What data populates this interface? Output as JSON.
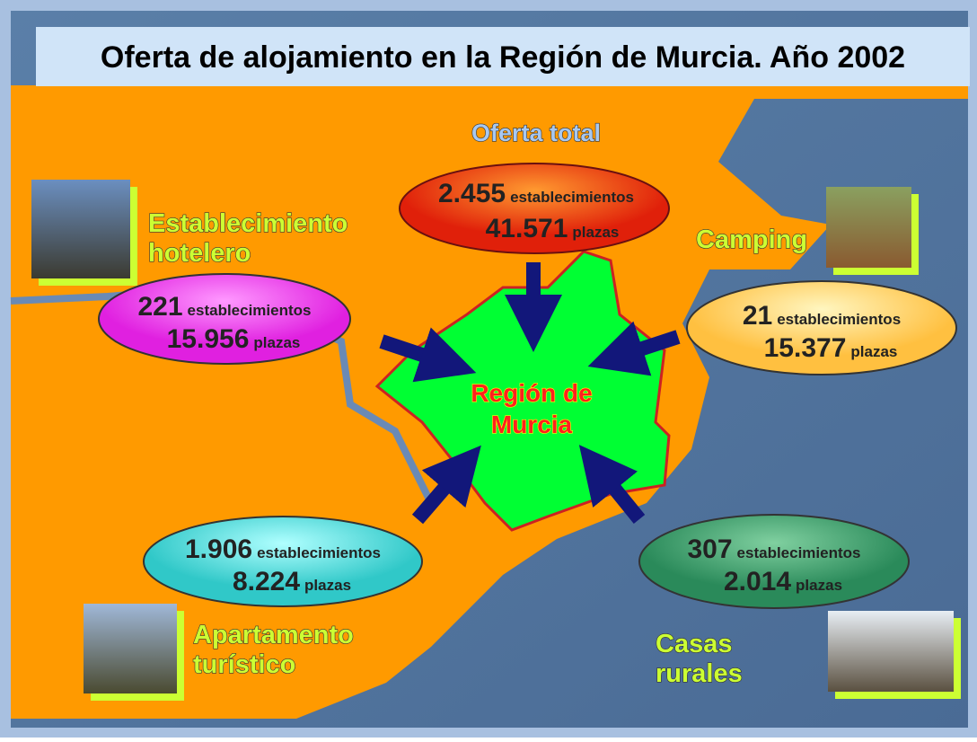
{
  "header": {
    "title": "Oferta de alojamiento en la Región de Murcia. Año 2002"
  },
  "units": {
    "establishments": "establecimientos",
    "places": "plazas"
  },
  "total": {
    "label": "Oferta total",
    "establishments": "2.455",
    "places": "41.571"
  },
  "region": {
    "lines": [
      "Región de",
      "Murcia"
    ]
  },
  "types": [
    {
      "label_lines": [
        "Establecimiento",
        "hotelero"
      ],
      "establishments": "221",
      "places": "15.956"
    },
    {
      "label_lines": [
        "Camping"
      ],
      "establishments": "21",
      "places": "15.377"
    },
    {
      "label_lines": [
        "Apartamento",
        "turístico"
      ],
      "establishments": "1.906",
      "places": "8.224"
    },
    {
      "label_lines": [
        "Casas",
        "rurales"
      ],
      "establishments": "307",
      "places": "2.014"
    }
  ]
}
